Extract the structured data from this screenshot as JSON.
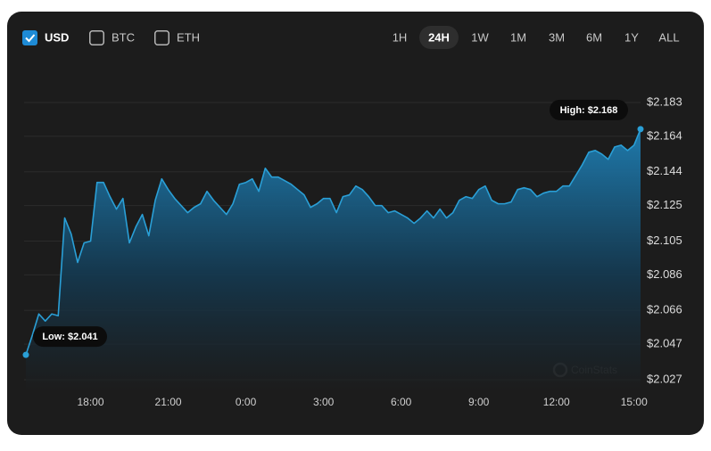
{
  "controls": {
    "currencies": [
      {
        "label": "USD",
        "checked": true
      },
      {
        "label": "BTC",
        "checked": false
      },
      {
        "label": "ETH",
        "checked": false
      }
    ],
    "ranges": [
      {
        "label": "1H",
        "selected": false
      },
      {
        "label": "24H",
        "selected": true
      },
      {
        "label": "1W",
        "selected": false
      },
      {
        "label": "1M",
        "selected": false
      },
      {
        "label": "3M",
        "selected": false
      },
      {
        "label": "6M",
        "selected": false
      },
      {
        "label": "1Y",
        "selected": false
      },
      {
        "label": "ALL",
        "selected": false
      }
    ]
  },
  "chart_data": {
    "type": "area",
    "x": [
      15.5,
      15.75,
      16,
      16.25,
      16.5,
      16.75,
      17,
      17.25,
      17.5,
      17.75,
      18,
      18.25,
      18.5,
      18.75,
      19,
      19.25,
      19.5,
      19.75,
      20,
      20.25,
      20.5,
      20.75,
      21,
      21.25,
      21.5,
      21.75,
      22,
      22.25,
      22.5,
      22.75,
      23,
      23.25,
      23.5,
      23.75,
      24,
      24.25,
      24.5,
      24.75,
      25,
      25.25,
      25.5,
      25.75,
      26,
      26.25,
      26.5,
      26.75,
      27,
      27.25,
      27.5,
      27.75,
      28,
      28.25,
      28.5,
      28.75,
      29,
      29.25,
      29.5,
      29.75,
      30,
      30.25,
      30.5,
      30.75,
      31,
      31.25,
      31.5,
      31.75,
      32,
      32.25,
      32.5,
      32.75,
      33,
      33.25,
      33.5,
      33.75,
      34,
      34.25,
      34.5,
      34.75,
      35,
      35.25,
      35.5,
      35.75,
      36,
      36.25,
      36.5,
      36.75,
      37,
      37.25,
      37.5,
      37.75,
      38,
      38.25,
      38.5,
      38.75,
      39,
      39.25
    ],
    "series": [
      {
        "name": "USD",
        "color": "#2a9fd6",
        "values": [
          2.041,
          2.052,
          2.064,
          2.06,
          2.064,
          2.063,
          2.118,
          2.109,
          2.093,
          2.104,
          2.105,
          2.138,
          2.138,
          2.13,
          2.123,
          2.129,
          2.104,
          2.113,
          2.12,
          2.108,
          2.128,
          2.14,
          2.134,
          2.129,
          2.125,
          2.121,
          2.124,
          2.126,
          2.133,
          2.128,
          2.124,
          2.12,
          2.126,
          2.137,
          2.138,
          2.14,
          2.133,
          2.146,
          2.141,
          2.141,
          2.139,
          2.137,
          2.134,
          2.131,
          2.124,
          2.126,
          2.129,
          2.129,
          2.121,
          2.13,
          2.131,
          2.136,
          2.134,
          2.13,
          2.125,
          2.125,
          2.121,
          2.122,
          2.12,
          2.118,
          2.115,
          2.118,
          2.122,
          2.118,
          2.123,
          2.118,
          2.121,
          2.128,
          2.13,
          2.129,
          2.134,
          2.136,
          2.128,
          2.126,
          2.126,
          2.127,
          2.134,
          2.135,
          2.134,
          2.13,
          2.132,
          2.133,
          2.133,
          2.136,
          2.136,
          2.142,
          2.148,
          2.155,
          2.156,
          2.154,
          2.151,
          2.158,
          2.159,
          2.156,
          2.159,
          2.168
        ]
      }
    ],
    "xlim": [
      15.5,
      39.25
    ],
    "xticks": [
      {
        "value": 18,
        "label": "18:00"
      },
      {
        "value": 21,
        "label": "21:00"
      },
      {
        "value": 24,
        "label": "0:00"
      },
      {
        "value": 27,
        "label": "3:00"
      },
      {
        "value": 30,
        "label": "6:00"
      },
      {
        "value": 33,
        "label": "9:00"
      },
      {
        "value": 36,
        "label": "12:00"
      },
      {
        "value": 39,
        "label": "15:00"
      }
    ],
    "ylim": [
      2.027,
      2.183
    ],
    "yticks": [
      {
        "value": 2.183,
        "label": "$2.183"
      },
      {
        "value": 2.164,
        "label": "$2.164"
      },
      {
        "value": 2.144,
        "label": "$2.144"
      },
      {
        "value": 2.125,
        "label": "$2.125"
      },
      {
        "value": 2.105,
        "label": "$2.105"
      },
      {
        "value": 2.086,
        "label": "$2.086"
      },
      {
        "value": 2.066,
        "label": "$2.066"
      },
      {
        "value": 2.047,
        "label": "$2.047"
      },
      {
        "value": 2.027,
        "label": "$2.027"
      }
    ],
    "grid": true,
    "annotations": {
      "low": "Low: $2.041",
      "high": "High: $2.168"
    },
    "watermark": "CoinStats"
  }
}
